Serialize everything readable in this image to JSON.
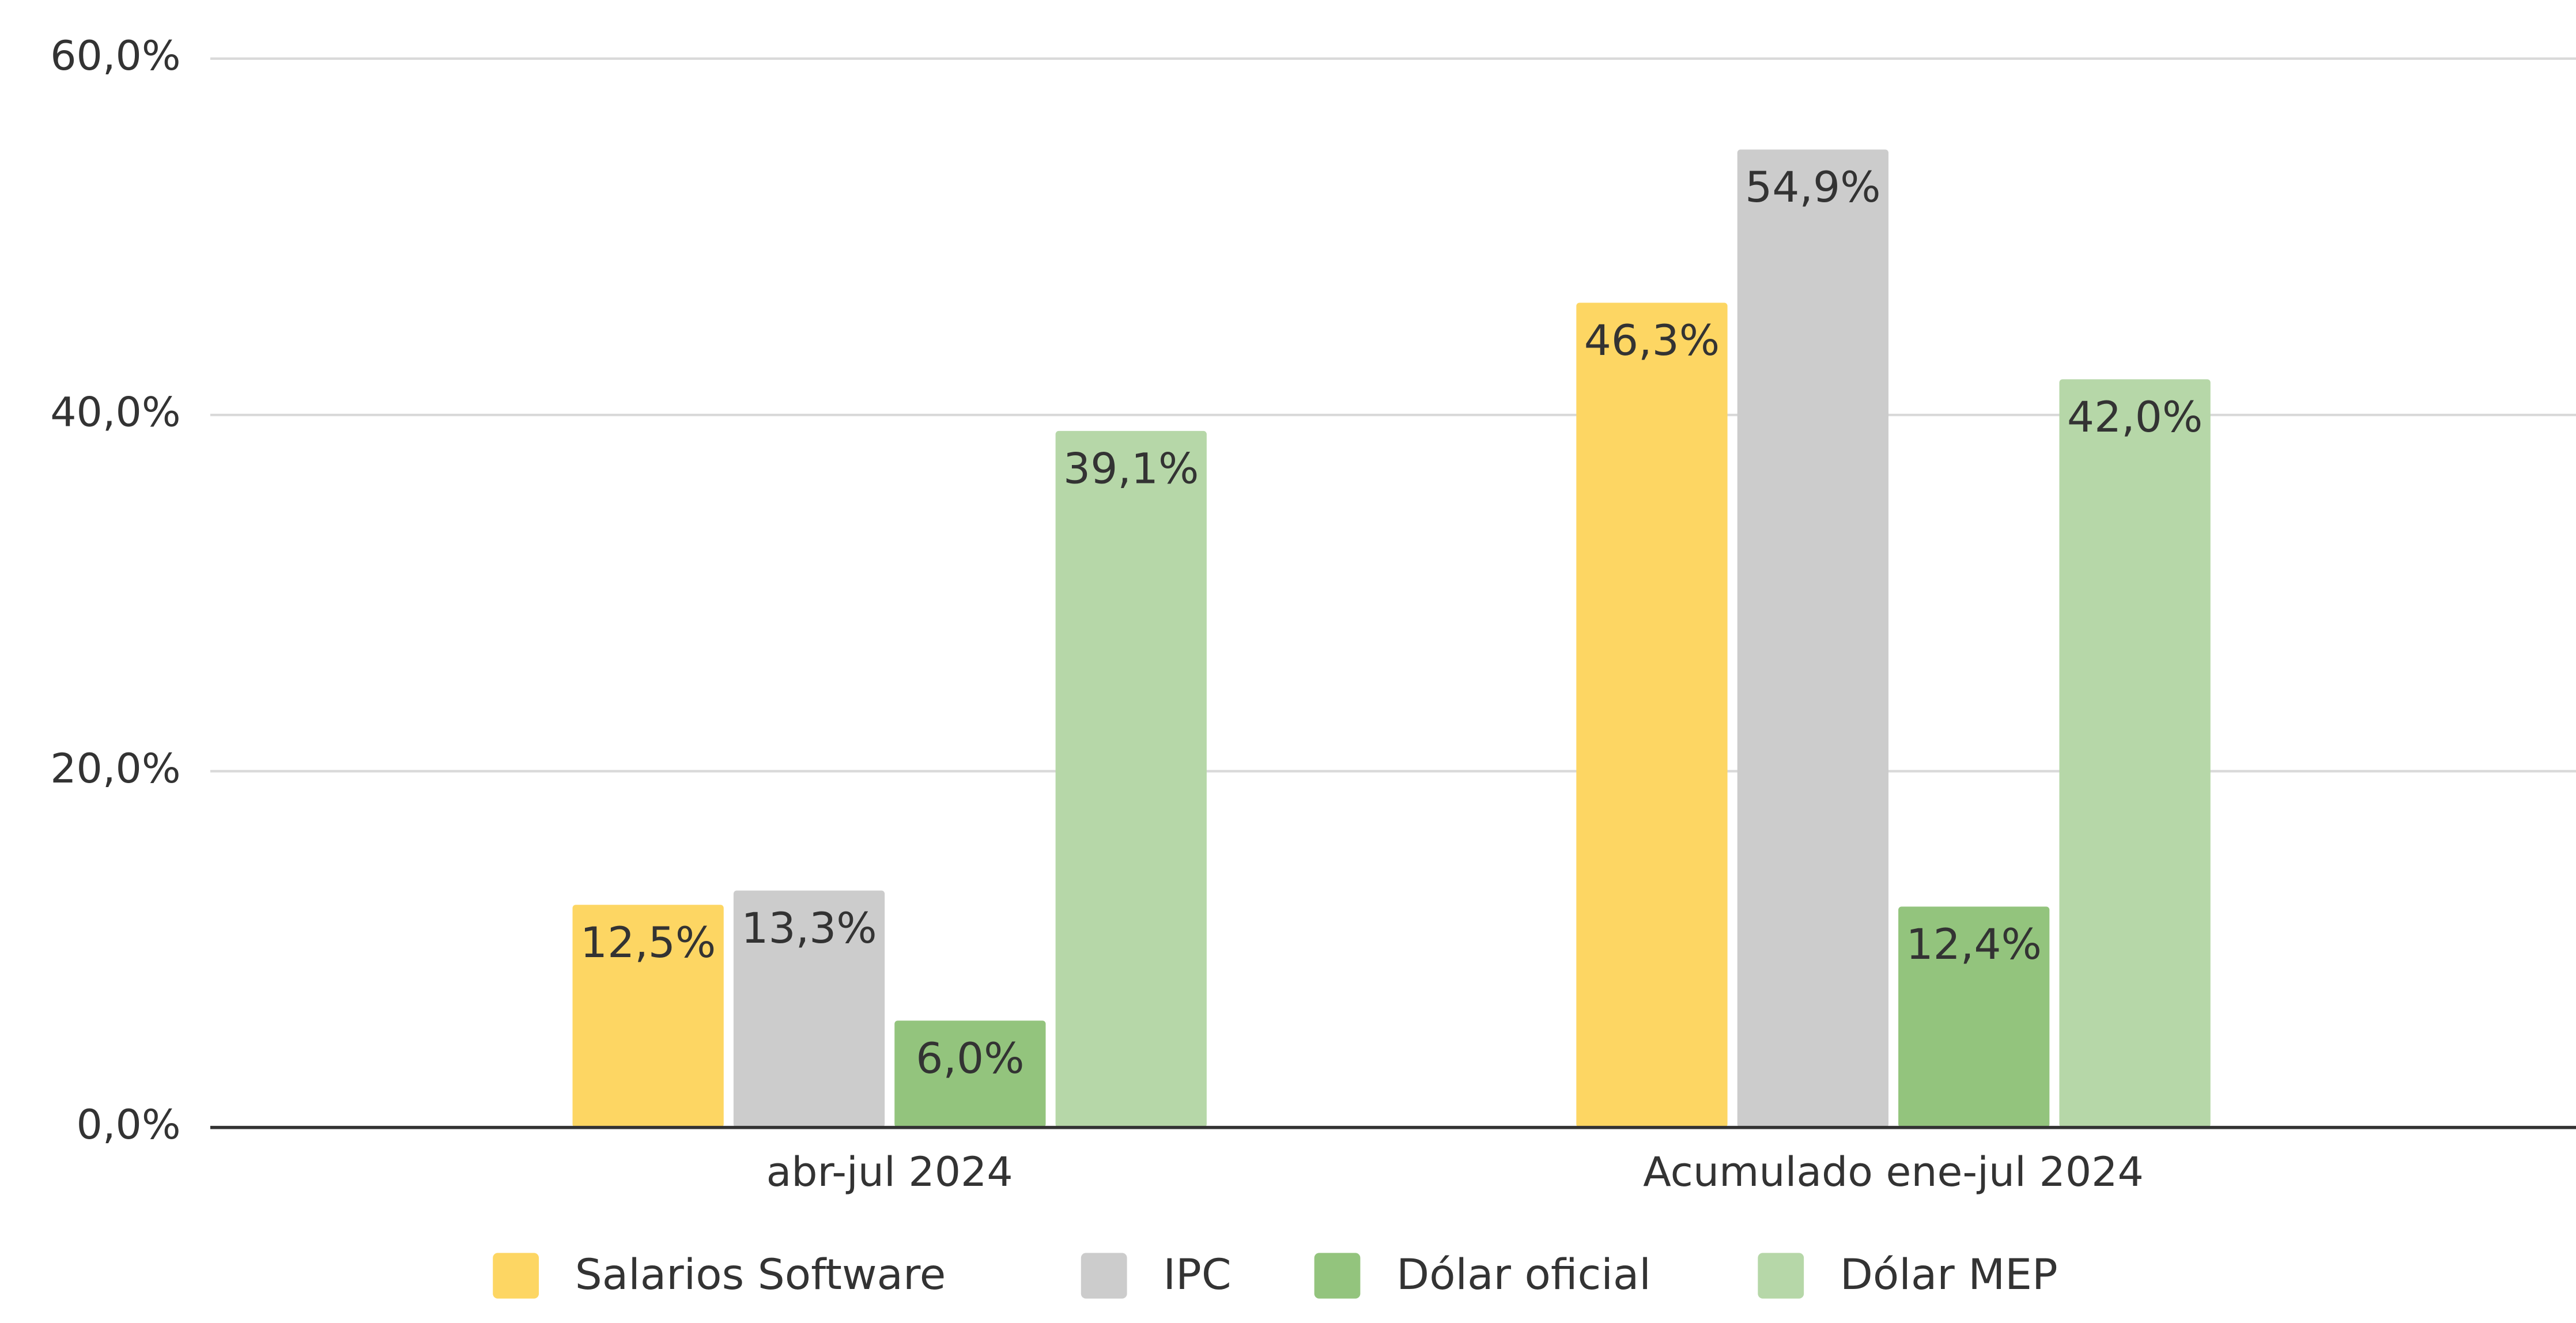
{
  "chart_data": {
    "type": "bar",
    "categories": [
      "abr-jul 2024",
      "Acumulado ene-jul 2024"
    ],
    "series": [
      {
        "name": "Salarios Software",
        "color": "#fdd663",
        "values": [
          12.5,
          46.3
        ],
        "value_labels": [
          "12,5%",
          "46,3%"
        ]
      },
      {
        "name": "IPC",
        "color": "#cccccc",
        "values": [
          13.3,
          54.9
        ],
        "value_labels": [
          "13,3%",
          "54,9%"
        ]
      },
      {
        "name": "Dólar oficial",
        "color": "#93c47d",
        "values": [
          6.0,
          12.4
        ],
        "value_labels": [
          "6,0%",
          "12,4%"
        ]
      },
      {
        "name": "Dólar MEP",
        "color": "#b6d7a8",
        "values": [
          39.1,
          42.0
        ],
        "value_labels": [
          "39,1%",
          "42,0%"
        ]
      }
    ],
    "ylim": [
      0,
      60
    ],
    "yticks": [
      {
        "value": 0,
        "label": "0,0%"
      },
      {
        "value": 20,
        "label": "20,0%"
      },
      {
        "value": 40,
        "label": "40,0%"
      },
      {
        "value": 60,
        "label": "60,0%"
      }
    ],
    "grid": true,
    "legend": "bottom"
  }
}
